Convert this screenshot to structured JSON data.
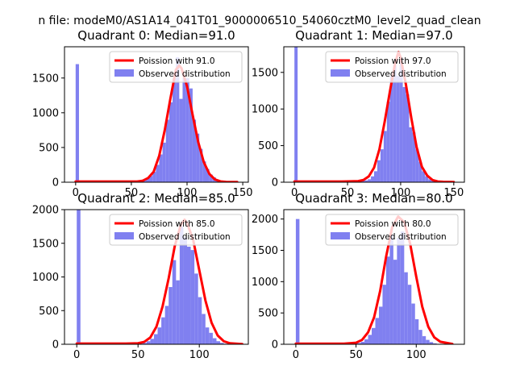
{
  "suptitle": "n file: modeM0/AS1A14_041T01_9000006510_54060cztM0_level2_quad_clean",
  "colors": {
    "histogram": "#8080f0",
    "poisson": "#ff0000",
    "axis": "#000000",
    "background": "#ffffff"
  },
  "chart_data": [
    {
      "type": "bar",
      "title": "Quadrant 0: Median=91.0",
      "xlabel": "",
      "ylabel": "",
      "xlim": [
        -10,
        155
      ],
      "ylim": [
        0,
        1950
      ],
      "xticks": [
        0,
        50,
        100,
        150
      ],
      "yticks": [
        0,
        500,
        1000,
        1500
      ],
      "legend": {
        "position": "top-right",
        "poisson_label": "Poission with 91.0",
        "hist_label": "Observed distribution"
      },
      "histogram": {
        "bin_width": 3,
        "bins": [
          {
            "x": 0,
            "count": 1700
          },
          {
            "x": 48,
            "count": 3
          },
          {
            "x": 51,
            "count": 8
          },
          {
            "x": 54,
            "count": 15
          },
          {
            "x": 57,
            "count": 25
          },
          {
            "x": 60,
            "count": 40
          },
          {
            "x": 63,
            "count": 50
          },
          {
            "x": 66,
            "count": 90
          },
          {
            "x": 69,
            "count": 150
          },
          {
            "x": 72,
            "count": 250
          },
          {
            "x": 75,
            "count": 400
          },
          {
            "x": 78,
            "count": 570
          },
          {
            "x": 81,
            "count": 900
          },
          {
            "x": 84,
            "count": 1150
          },
          {
            "x": 87,
            "count": 1500
          },
          {
            "x": 90,
            "count": 1800
          },
          {
            "x": 93,
            "count": 1200
          },
          {
            "x": 96,
            "count": 1500
          },
          {
            "x": 99,
            "count": 1500
          },
          {
            "x": 102,
            "count": 1350
          },
          {
            "x": 105,
            "count": 900
          },
          {
            "x": 108,
            "count": 700
          },
          {
            "x": 111,
            "count": 480
          },
          {
            "x": 114,
            "count": 300
          },
          {
            "x": 117,
            "count": 190
          },
          {
            "x": 120,
            "count": 110
          },
          {
            "x": 123,
            "count": 70
          },
          {
            "x": 126,
            "count": 35
          },
          {
            "x": 129,
            "count": 15
          },
          {
            "x": 132,
            "count": 6
          }
        ]
      },
      "poisson": {
        "x": [
          0,
          40,
          55,
          60,
          65,
          70,
          75,
          80,
          85,
          90,
          93,
          95,
          100,
          105,
          110,
          115,
          120,
          125,
          130,
          135,
          145
        ],
        "y": [
          10,
          10,
          10,
          20,
          60,
          150,
          380,
          750,
          1200,
          1620,
          1680,
          1640,
          1380,
          970,
          580,
          290,
          120,
          40,
          12,
          5,
          3
        ]
      }
    },
    {
      "type": "bar",
      "title": "Quadrant 1: Median=97.0",
      "xlabel": "",
      "ylabel": "",
      "xlim": [
        -10,
        160
      ],
      "ylim": [
        0,
        1850
      ],
      "xticks": [
        0,
        50,
        100,
        150
      ],
      "yticks": [
        0,
        500,
        1000,
        1500
      ],
      "legend": {
        "position": "top-right",
        "poisson_label": "Poission with 97.0",
        "hist_label": "Observed distribution"
      },
      "histogram": {
        "bin_width": 3,
        "bins": [
          {
            "x": 0,
            "count": 1900
          },
          {
            "x": 54,
            "count": 5
          },
          {
            "x": 57,
            "count": 10
          },
          {
            "x": 60,
            "count": 15
          },
          {
            "x": 63,
            "count": 20
          },
          {
            "x": 66,
            "count": 25
          },
          {
            "x": 69,
            "count": 40
          },
          {
            "x": 72,
            "count": 80
          },
          {
            "x": 75,
            "count": 150
          },
          {
            "x": 78,
            "count": 300
          },
          {
            "x": 81,
            "count": 450
          },
          {
            "x": 84,
            "count": 700
          },
          {
            "x": 87,
            "count": 1100
          },
          {
            "x": 90,
            "count": 1450
          },
          {
            "x": 93,
            "count": 1600
          },
          {
            "x": 96,
            "count": 1450
          },
          {
            "x": 99,
            "count": 1700
          },
          {
            "x": 102,
            "count": 1300
          },
          {
            "x": 105,
            "count": 1200
          },
          {
            "x": 108,
            "count": 750
          },
          {
            "x": 111,
            "count": 680
          },
          {
            "x": 114,
            "count": 450
          },
          {
            "x": 117,
            "count": 280
          },
          {
            "x": 120,
            "count": 150
          },
          {
            "x": 123,
            "count": 80
          },
          {
            "x": 126,
            "count": 40
          },
          {
            "x": 129,
            "count": 20
          },
          {
            "x": 132,
            "count": 10
          },
          {
            "x": 135,
            "count": 5
          }
        ]
      },
      "poisson": {
        "x": [
          0,
          45,
          60,
          65,
          70,
          75,
          80,
          85,
          90,
          95,
          98,
          100,
          105,
          110,
          115,
          120,
          125,
          130,
          135,
          140,
          150
        ],
        "y": [
          10,
          10,
          15,
          30,
          80,
          200,
          450,
          830,
          1250,
          1640,
          1780,
          1700,
          1330,
          880,
          480,
          210,
          90,
          30,
          10,
          5,
          3
        ]
      }
    },
    {
      "type": "bar",
      "title": "Quadrant 2: Median=85.0",
      "xlabel": "",
      "ylabel": "",
      "xlim": [
        -10,
        140
      ],
      "ylim": [
        0,
        2000
      ],
      "xticks": [
        0,
        50,
        100
      ],
      "yticks": [
        0,
        500,
        1000,
        1500,
        2000
      ],
      "legend": {
        "position": "top-right",
        "poisson_label": "Poission with 85.0",
        "hist_label": "Observed distribution"
      },
      "histogram": {
        "bin_width": 3,
        "bins": [
          {
            "x": 0,
            "count": 2000
          },
          {
            "x": 48,
            "count": 5
          },
          {
            "x": 51,
            "count": 10
          },
          {
            "x": 54,
            "count": 20
          },
          {
            "x": 57,
            "count": 45
          },
          {
            "x": 60,
            "count": 80
          },
          {
            "x": 63,
            "count": 150
          },
          {
            "x": 66,
            "count": 250
          },
          {
            "x": 69,
            "count": 400
          },
          {
            "x": 72,
            "count": 570
          },
          {
            "x": 75,
            "count": 850
          },
          {
            "x": 78,
            "count": 1250
          },
          {
            "x": 81,
            "count": 950
          },
          {
            "x": 84,
            "count": 1750
          },
          {
            "x": 87,
            "count": 1600
          },
          {
            "x": 90,
            "count": 1450
          },
          {
            "x": 93,
            "count": 1400
          },
          {
            "x": 96,
            "count": 1050
          },
          {
            "x": 99,
            "count": 700
          },
          {
            "x": 102,
            "count": 450
          },
          {
            "x": 105,
            "count": 250
          },
          {
            "x": 108,
            "count": 170
          },
          {
            "x": 111,
            "count": 90
          },
          {
            "x": 114,
            "count": 45
          },
          {
            "x": 117,
            "count": 20
          },
          {
            "x": 120,
            "count": 8
          }
        ]
      },
      "poisson": {
        "x": [
          0,
          40,
          50,
          55,
          60,
          65,
          70,
          75,
          80,
          85,
          88,
          90,
          95,
          100,
          105,
          110,
          115,
          120,
          125,
          135
        ],
        "y": [
          10,
          10,
          15,
          35,
          100,
          260,
          560,
          980,
          1460,
          1780,
          1850,
          1800,
          1550,
          1100,
          650,
          320,
          130,
          45,
          15,
          3
        ]
      }
    },
    {
      "type": "bar",
      "title": "Quadrant 3: Median=80.0",
      "xlabel": "",
      "ylabel": "",
      "xlim": [
        -10,
        140
      ],
      "ylim": [
        0,
        2150
      ],
      "xticks": [
        0,
        50,
        100
      ],
      "yticks": [
        0,
        500,
        1000,
        1500,
        2000
      ],
      "legend": {
        "position": "top-right",
        "poisson_label": "Poission with 80.0",
        "hist_label": "Observed distribution"
      },
      "histogram": {
        "bin_width": 3,
        "bins": [
          {
            "x": 0,
            "count": 2000
          },
          {
            "x": 45,
            "count": 5
          },
          {
            "x": 48,
            "count": 10
          },
          {
            "x": 51,
            "count": 20
          },
          {
            "x": 54,
            "count": 40
          },
          {
            "x": 57,
            "count": 80
          },
          {
            "x": 60,
            "count": 150
          },
          {
            "x": 63,
            "count": 260
          },
          {
            "x": 66,
            "count": 420
          },
          {
            "x": 69,
            "count": 600
          },
          {
            "x": 72,
            "count": 950
          },
          {
            "x": 75,
            "count": 1400
          },
          {
            "x": 78,
            "count": 1750
          },
          {
            "x": 81,
            "count": 1350
          },
          {
            "x": 84,
            "count": 1700
          },
          {
            "x": 87,
            "count": 1800
          },
          {
            "x": 90,
            "count": 1150
          },
          {
            "x": 93,
            "count": 950
          },
          {
            "x": 96,
            "count": 650
          },
          {
            "x": 99,
            "count": 400
          },
          {
            "x": 102,
            "count": 230
          },
          {
            "x": 105,
            "count": 130
          },
          {
            "x": 108,
            "count": 70
          },
          {
            "x": 111,
            "count": 35
          },
          {
            "x": 114,
            "count": 15
          },
          {
            "x": 117,
            "count": 6
          }
        ]
      },
      "poisson": {
        "x": [
          0,
          40,
          50,
          55,
          60,
          65,
          70,
          75,
          80,
          85,
          90,
          95,
          100,
          105,
          110,
          115,
          120,
          130
        ],
        "y": [
          10,
          10,
          25,
          70,
          190,
          430,
          850,
          1400,
          1870,
          2040,
          1950,
          1600,
          1080,
          600,
          280,
          110,
          40,
          5
        ]
      }
    }
  ]
}
